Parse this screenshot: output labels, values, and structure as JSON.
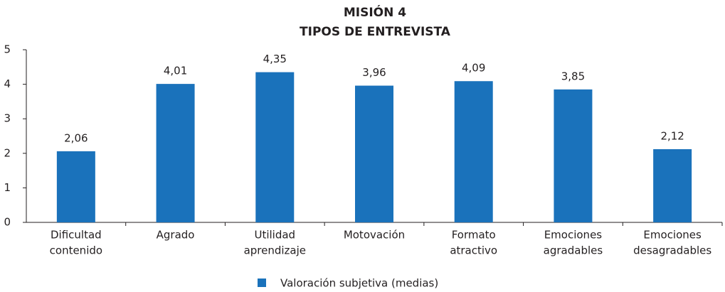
{
  "chart_data": {
    "type": "bar",
    "title": [
      "MISIÓN 4",
      "TIPOS DE ENTREVISTA"
    ],
    "categories": [
      [
        "Dificultad",
        "contenido"
      ],
      [
        "Agrado"
      ],
      [
        "Utilidad",
        "aprendizaje"
      ],
      [
        "Motovación"
      ],
      [
        "Formato",
        "atractivo"
      ],
      [
        "Emociones",
        "agradables"
      ],
      [
        "Emociones",
        "desagradables"
      ]
    ],
    "series": [
      {
        "name": "Valoración subjetiva (medias)",
        "color": "#1a72bb",
        "values": [
          2.06,
          4.01,
          4.35,
          3.96,
          4.09,
          3.85,
          2.12
        ],
        "value_labels": [
          "2,06",
          "4,01",
          "4,35",
          "3,96",
          "4,09",
          "3,85",
          "2,12"
        ]
      }
    ],
    "ylim": [
      0,
      5
    ],
    "yticks": [
      0,
      1,
      2,
      3,
      4,
      5
    ],
    "grid": false,
    "legend": "bottom"
  }
}
